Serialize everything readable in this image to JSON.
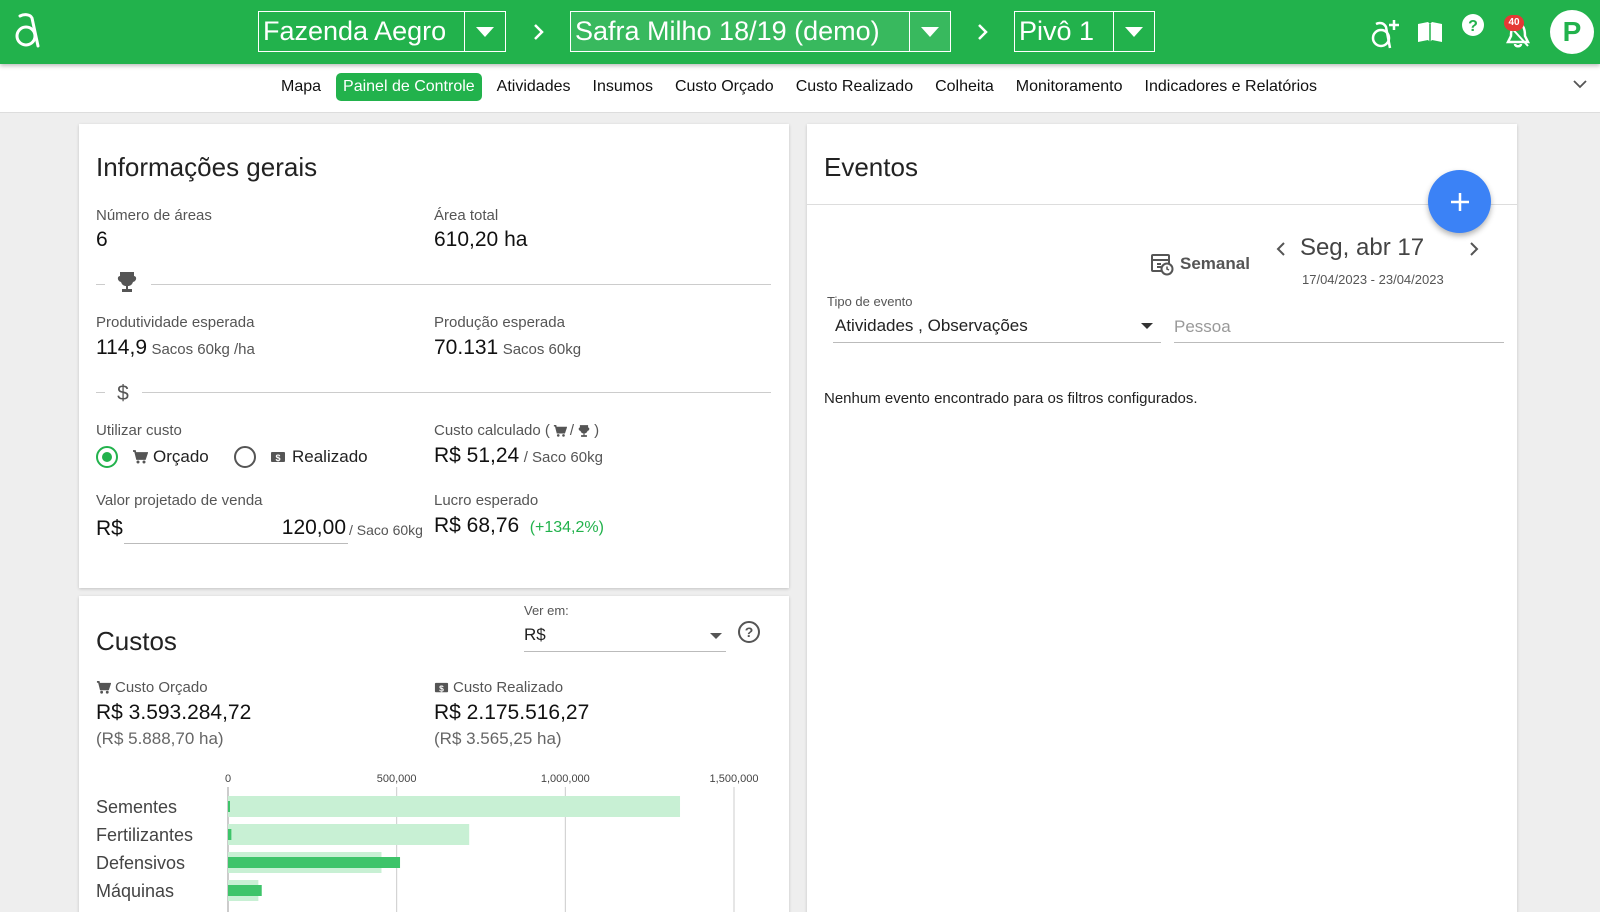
{
  "colors": {
    "brand_green": "#22b24c",
    "fab_blue": "#3b82f6",
    "bar_light": "#c8f0d4",
    "bar_dark": "#3ec46a",
    "badge_red": "#e53935"
  },
  "topbar": {
    "logo_icon": "aegro-logo-icon",
    "farm": "Fazenda Aegro",
    "season": "Safra Milho 18/19 (demo)",
    "plot": "Pivô 1",
    "notification_count": "40",
    "avatar_letter": "P",
    "icons": [
      "add-user-icon",
      "book-icon",
      "help-icon",
      "bell-icon"
    ]
  },
  "nav": {
    "items": [
      {
        "label": "Mapa",
        "active": false
      },
      {
        "label": "Painel de Controle",
        "active": true
      },
      {
        "label": "Atividades",
        "active": false
      },
      {
        "label": "Insumos",
        "active": false
      },
      {
        "label": "Custo Orçado",
        "active": false
      },
      {
        "label": "Custo Realizado",
        "active": false
      },
      {
        "label": "Colheita",
        "active": false
      },
      {
        "label": "Monitoramento",
        "active": false
      },
      {
        "label": "Indicadores e Relatórios",
        "active": false
      }
    ]
  },
  "info": {
    "title": "Informações gerais",
    "areas_label": "Número de áreas",
    "areas_value": "6",
    "total_area_label": "Área total",
    "total_area_value": "610,20 ha",
    "expected_productivity_label": "Produtividade esperada",
    "expected_productivity_value": "114,9",
    "expected_productivity_unit": "Sacos 60kg /ha",
    "expected_production_label": "Produção esperada",
    "expected_production_value": "70.131",
    "expected_production_unit": "Sacos 60kg",
    "use_cost_label": "Utilizar custo",
    "radio_budgeted": "Orçado",
    "radio_realized": "Realizado",
    "calculated_cost_label_prefix": "Custo calculado (",
    "calculated_cost_label_slash": "/",
    "calculated_cost_label_suffix": ")",
    "calculated_cost_value": "R$ 51,24",
    "calculated_cost_unit": "/ Saco 60kg",
    "projected_price_label": "Valor projetado de venda",
    "projected_price_currency": "R$",
    "projected_price_value": "120,00",
    "projected_price_unit": "/ Saco 60kg",
    "expected_profit_label": "Lucro esperado",
    "expected_profit_value": "R$ 68,76",
    "expected_profit_percent": "(+134,2%)"
  },
  "costs": {
    "title": "Custos",
    "view_in_label": "Ver em:",
    "view_in_value": "R$",
    "budgeted_label": "Custo Orçado",
    "budgeted_value": "R$ 3.593.284,72",
    "budgeted_per_ha": "(R$ 5.888,70 ha)",
    "realized_label": "Custo Realizado",
    "realized_value": "R$ 2.175.516,27",
    "realized_per_ha": "(R$ 3.565,25 ha)"
  },
  "chart_data": {
    "type": "bar",
    "orientation": "horizontal",
    "categories": [
      "Sementes",
      "Fertilizantes",
      "Defensivos",
      "Máquinas"
    ],
    "series": [
      {
        "values": [
          1340000,
          715000,
          455000,
          90000
        ]
      },
      {
        "values": [
          5000,
          10000,
          510000,
          100000
        ]
      }
    ],
    "x_ticks": [
      "0",
      "500,000",
      "1,000,000",
      "1,500,000"
    ],
    "x_tick_values": [
      0,
      500000,
      1000000,
      1500000
    ],
    "xlim": [
      0,
      1500000
    ],
    "grid": true
  },
  "events": {
    "title": "Eventos",
    "view_mode": "Semanal",
    "current_date": "Seg, abr 17",
    "date_range": "17/04/2023 - 23/04/2023",
    "event_type_label": "Tipo de evento",
    "event_type_value": "Atividades , Observações",
    "person_placeholder": "Pessoa",
    "empty_message": "Nenhum evento encontrado para os filtros configurados."
  }
}
